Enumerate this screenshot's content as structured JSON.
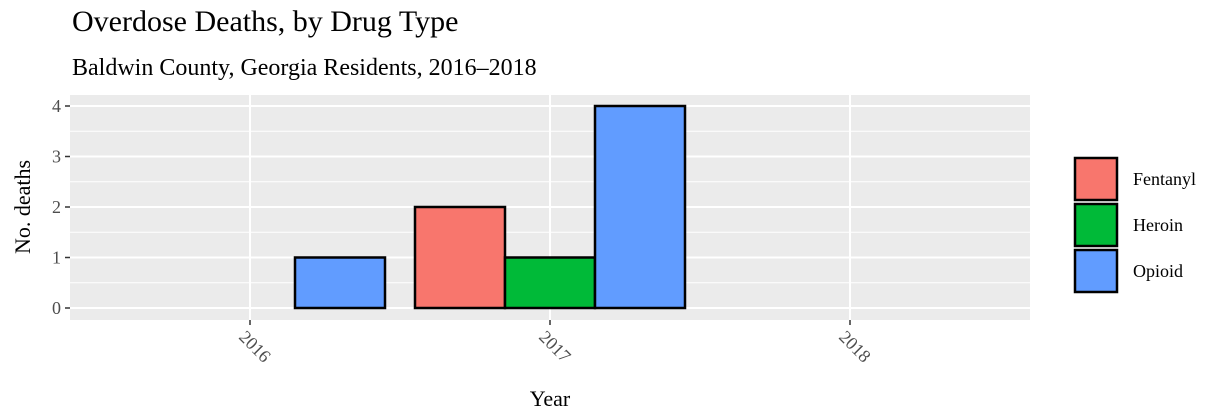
{
  "chart_data": {
    "type": "bar",
    "title": "Overdose Deaths, by Drug Type",
    "subtitle": "Baldwin County, Georgia Residents, 2016–2018",
    "xlabel": "Year",
    "ylabel": "No. deaths",
    "categories": [
      "2016",
      "2017",
      "2018"
    ],
    "series": [
      {
        "name": "Fentanyl",
        "color": "#F8766D",
        "values": [
          0,
          2,
          0
        ]
      },
      {
        "name": "Heroin",
        "color": "#00BA38",
        "values": [
          0,
          1,
          0
        ]
      },
      {
        "name": "Opioid",
        "color": "#619CFF",
        "values": [
          1,
          4,
          0
        ]
      }
    ],
    "ylim": [
      0,
      4
    ],
    "yticks": [
      "0",
      "1",
      "2",
      "3",
      "4"
    ],
    "grid": true,
    "legend_position": "right",
    "panel_background": "#EBEBEB"
  }
}
